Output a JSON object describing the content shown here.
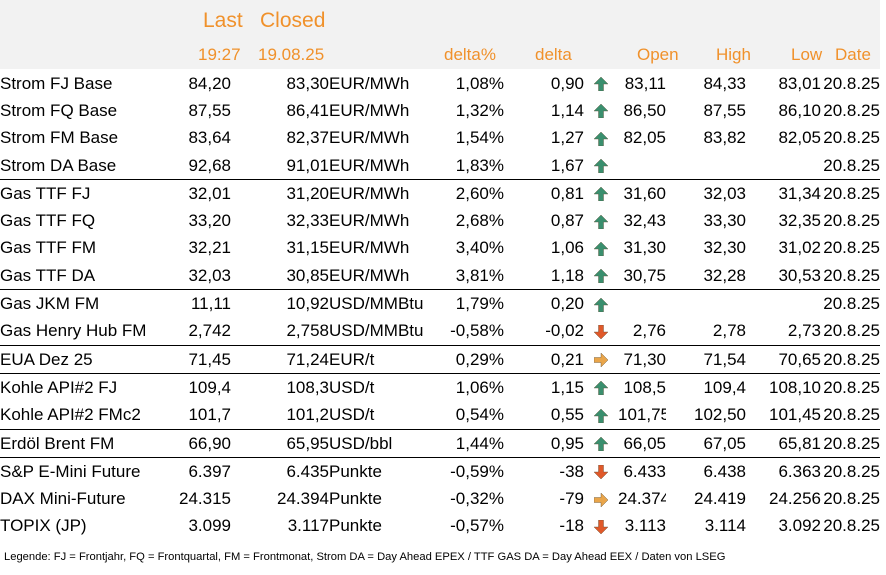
{
  "header": {
    "last": "Last",
    "closed": "Closed",
    "last_time": "19:27",
    "closed_date": "19.08.25",
    "delta_pct": "delta%",
    "delta": "delta",
    "open": "Open",
    "high": "High",
    "low": "Low",
    "date": "Date"
  },
  "colors": {
    "accent": "#f0912b",
    "header_band": "#f2f2f2",
    "arrow_up": "#3a8f6e",
    "arrow_down": "#e0592a",
    "arrow_flat": "#e9a54a"
  },
  "rows": [
    {
      "name": "Strom FJ Base",
      "last": "84,20",
      "closed": "83,30",
      "unit": "EUR/MWh",
      "pct": "1,08%",
      "delta": "0,90",
      "trend": "up",
      "open": "83,11",
      "high": "84,33",
      "low": "83,01",
      "date": "20.8.25",
      "sep": false
    },
    {
      "name": "Strom FQ Base",
      "last": "87,55",
      "closed": "86,41",
      "unit": "EUR/MWh",
      "pct": "1,32%",
      "delta": "1,14",
      "trend": "up",
      "open": "86,50",
      "high": "87,55",
      "low": "86,10",
      "date": "20.8.25",
      "sep": false
    },
    {
      "name": "Strom FM Base",
      "last": "83,64",
      "closed": "82,37",
      "unit": "EUR/MWh",
      "pct": "1,54%",
      "delta": "1,27",
      "trend": "up",
      "open": "82,05",
      "high": "83,82",
      "low": "82,05",
      "date": "20.8.25",
      "sep": false
    },
    {
      "name": "Strom DA Base",
      "last": "92,68",
      "closed": "91,01",
      "unit": "EUR/MWh",
      "pct": "1,83%",
      "delta": "1,67",
      "trend": "up",
      "open": "",
      "high": "",
      "low": "",
      "date": "20.8.25",
      "sep": false
    },
    {
      "name": "Gas TTF FJ",
      "last": "32,01",
      "closed": "31,20",
      "unit": "EUR/MWh",
      "pct": "2,60%",
      "delta": "0,81",
      "trend": "up",
      "open": "31,60",
      "high": "32,03",
      "low": "31,34",
      "date": "20.8.25",
      "sep": true
    },
    {
      "name": "Gas TTF FQ",
      "last": "33,20",
      "closed": "32,33",
      "unit": "EUR/MWh",
      "pct": "2,68%",
      "delta": "0,87",
      "trend": "up",
      "open": "32,43",
      "high": "33,30",
      "low": "32,35",
      "date": "20.8.25",
      "sep": false
    },
    {
      "name": "Gas TTF FM",
      "last": "32,21",
      "closed": "31,15",
      "unit": "EUR/MWh",
      "pct": "3,40%",
      "delta": "1,06",
      "trend": "up",
      "open": "31,30",
      "high": "32,30",
      "low": "31,02",
      "date": "20.8.25",
      "sep": false
    },
    {
      "name": "Gas TTF DA",
      "last": "32,03",
      "closed": "30,85",
      "unit": "EUR/MWh",
      "pct": "3,81%",
      "delta": "1,18",
      "trend": "up",
      "open": "30,75",
      "high": "32,28",
      "low": "30,53",
      "date": "20.8.25",
      "sep": false
    },
    {
      "name": "Gas JKM FM",
      "last": "11,11",
      "closed": "10,92",
      "unit": "USD/MMBtu",
      "pct": "1,79%",
      "delta": "0,20",
      "trend": "up",
      "open": "",
      "high": "",
      "low": "",
      "date": "20.8.25",
      "sep": true
    },
    {
      "name": "Gas Henry Hub FM",
      "last": "2,742",
      "closed": "2,758",
      "unit": "USD/MMBtu",
      "pct": "-0,58%",
      "delta": "-0,02",
      "trend": "down",
      "open": "2,76",
      "high": "2,78",
      "low": "2,73",
      "date": "20.8.25",
      "sep": false
    },
    {
      "name": "EUA Dez 25",
      "last": "71,45",
      "closed": "71,24",
      "unit": "EUR/t",
      "pct": "0,29%",
      "delta": "0,21",
      "trend": "flat",
      "open": "71,30",
      "high": "71,54",
      "low": "70,65",
      "date": "20.8.25",
      "sep": true
    },
    {
      "name": "Kohle API#2 FJ",
      "last": "109,4",
      "closed": "108,3",
      "unit": "USD/t",
      "pct": "1,06%",
      "delta": "1,15",
      "trend": "up",
      "open": "108,5",
      "high": "109,4",
      "low": "108,10",
      "date": "20.8.25",
      "sep": true
    },
    {
      "name": "Kohle API#2 FMc2",
      "last": "101,7",
      "closed": "101,2",
      "unit": "USD/t",
      "pct": "0,54%",
      "delta": "0,55",
      "trend": "up",
      "open": "101,75",
      "high": "102,50",
      "low": "101,45",
      "date": "20.8.25",
      "sep": false
    },
    {
      "name": "Erdöl Brent FM",
      "last": "66,90",
      "closed": "65,95",
      "unit": "USD/bbl",
      "pct": "1,44%",
      "delta": "0,95",
      "trend": "up",
      "open": "66,05",
      "high": "67,05",
      "low": "65,81",
      "date": "20.8.25",
      "sep": true
    },
    {
      "name": "S&P E-Mini Future",
      "last": "6.397",
      "closed": "6.435",
      "unit": "Punkte",
      "pct": "-0,59%",
      "delta": "-38",
      "trend": "down",
      "open": "6.433",
      "high": "6.438",
      "low": "6.363",
      "date": "20.8.25",
      "sep": true
    },
    {
      "name": "DAX Mini-Future",
      "last": "24.315",
      "closed": "24.394",
      "unit": "Punkte",
      "pct": "-0,32%",
      "delta": "-79",
      "trend": "flat",
      "open": "24.374",
      "high": "24.419",
      "low": "24.256",
      "date": "20.8.25",
      "sep": false
    },
    {
      "name": "TOPIX (JP)",
      "last": "3.099",
      "closed": "3.117",
      "unit": "Punkte",
      "pct": "-0,57%",
      "delta": "-18",
      "trend": "down",
      "open": "3.113",
      "high": "3.114",
      "low": "3.092",
      "date": "20.8.25",
      "sep": false
    }
  ],
  "legend": "Legende: FJ = Frontjahr, FQ = Frontquartal, FM = Frontmonat, Strom DA = Day Ahead EPEX / TTF GAS DA = Day Ahead EEX / Daten von LSEG"
}
